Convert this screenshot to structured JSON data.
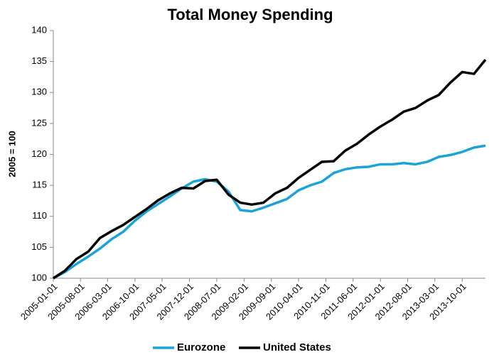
{
  "chart_data": {
    "type": "line",
    "title": "Total Money Spending",
    "y_label": "2005 = 100",
    "x": [
      "2005-01-01",
      "2005-04-01",
      "2005-07-01",
      "2005-10-01",
      "2006-01-01",
      "2006-04-01",
      "2006-07-01",
      "2006-10-01",
      "2007-01-01",
      "2007-04-01",
      "2007-07-01",
      "2007-10-01",
      "2008-01-01",
      "2008-04-01",
      "2008-07-01",
      "2008-10-01",
      "2009-01-01",
      "2009-04-01",
      "2009-07-01",
      "2009-10-01",
      "2010-01-01",
      "2010-04-01",
      "2010-07-01",
      "2010-10-01",
      "2011-01-01",
      "2011-04-01",
      "2011-07-01",
      "2011-10-01",
      "2012-01-01",
      "2012-04-01",
      "2012-07-01",
      "2012-10-01",
      "2013-01-01",
      "2013-04-01",
      "2013-07-01",
      "2013-10-01",
      "2014-01-01",
      "2014-04-01"
    ],
    "series": [
      {
        "name": "Eurozone",
        "color": "#1aa3d9",
        "values": [
          100,
          101,
          102.3,
          103.5,
          104.8,
          106.3,
          107.5,
          109.3,
          110.8,
          112,
          113.2,
          114.5,
          115.6,
          116,
          115.6,
          114,
          111,
          110.8,
          111.4,
          112.1,
          112.8,
          114.2,
          115,
          115.6,
          117,
          117.6,
          117.9,
          118,
          118.4,
          118.4,
          118.6,
          118.4,
          118.8,
          119.6,
          119.9,
          120.4,
          121.1,
          121.4
        ]
      },
      {
        "name": "United States",
        "color": "#000000",
        "values": [
          100,
          101.2,
          103.1,
          104.3,
          106.5,
          107.6,
          108.6,
          109.9,
          111.2,
          112.6,
          113.7,
          114.6,
          114.5,
          115.7,
          115.9,
          113.5,
          112.2,
          111.9,
          112.2,
          113.7,
          114.6,
          116.2,
          117.5,
          118.8,
          118.9,
          120.6,
          121.7,
          123.2,
          124.5,
          125.6,
          126.9,
          127.5,
          128.7,
          129.6,
          131.6,
          133.3,
          133,
          135.3
        ]
      }
    ],
    "xlim": [
      "2005-01-01",
      "2014-04-01"
    ],
    "xticks": [
      "2005-01-01",
      "2005-08-01",
      "2006-03-01",
      "2006-10-01",
      "2007-05-01",
      "2007-12-01",
      "2008-07-01",
      "2009-02-01",
      "2009-09-01",
      "2010-04-01",
      "2010-11-01",
      "2011-06-01",
      "2012-01-01",
      "2012-08-01",
      "2013-03-01",
      "2013-10-01"
    ],
    "ylim": [
      100,
      140
    ],
    "yticks": [
      100,
      105,
      110,
      115,
      120,
      125,
      130,
      135,
      140
    ],
    "legend": "bottom"
  }
}
